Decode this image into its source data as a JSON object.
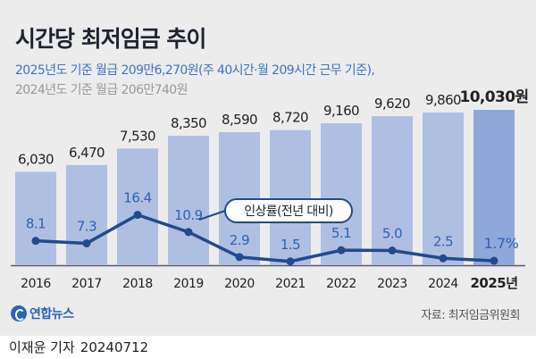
{
  "title": "시간당 최저임금 추이",
  "subtitle_2025": "2025년도 기준 월급 209만6,270원(주 40시간·월 209시간 근무 기준),",
  "subtitle_2024": "2024년도 기준 월급 206만740원",
  "legend_label": "인상률(전년 대비)",
  "source": "자료: 최저임금위원회",
  "agency": "연합뉴스",
  "author": "이재윤 기자",
  "date": "20240712",
  "colors": {
    "bar": "#aebfe2",
    "bar_last": "#8ea8d9",
    "line": "#234a8c",
    "rate_text": "#2e62b5",
    "title": "#1f2230",
    "background": "#ececec"
  },
  "chart_data": {
    "type": "bar",
    "categories": [
      "2016",
      "2017",
      "2018",
      "2019",
      "2020",
      "2021",
      "2022",
      "2023",
      "2024",
      "2025년"
    ],
    "value_labels": [
      "6,030",
      "6,470",
      "7,530",
      "8,350",
      "8,590",
      "8,720",
      "9,160",
      "9,620",
      "9,860",
      "10,030원"
    ],
    "values": [
      6030,
      6470,
      7530,
      8350,
      8590,
      8720,
      9160,
      9620,
      9860,
      10030
    ],
    "series": [
      {
        "name": "인상률(전년 대비)",
        "type": "line",
        "values": [
          8.1,
          7.3,
          16.4,
          10.9,
          2.9,
          1.5,
          5.1,
          5.0,
          2.5,
          1.7
        ],
        "labels": [
          "8.1",
          "7.3",
          "16.4",
          "10.9",
          "2.9",
          "1.5",
          "5.1",
          "5.0",
          "2.5",
          "1.7%"
        ]
      }
    ]
  }
}
